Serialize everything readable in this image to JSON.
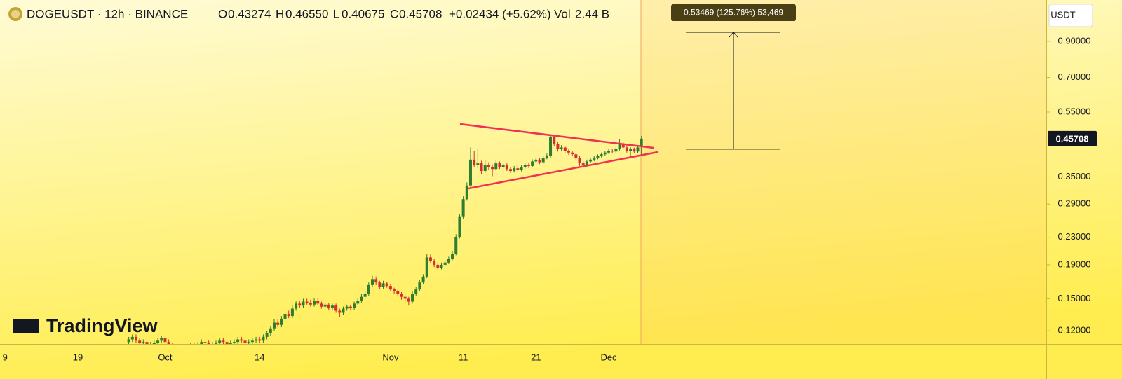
{
  "header": {
    "symbol": "DOGEUSDT · 12h · BINANCE",
    "open_label": "O",
    "open": "0.43274",
    "high_label": "H",
    "high": "0.46550",
    "low_label": "L",
    "low": "0.40675",
    "close_label": "C",
    "close": "0.45708",
    "change": "+0.02434 (+5.62%)",
    "volume_label": "Vol",
    "volume": "2.44 B",
    "currency": "USDT",
    "watermark": "TradingView"
  },
  "chart_data": {
    "type": "candlestick",
    "log_scale": true,
    "grid": false,
    "up_color": "#2e7d32",
    "down_color": "#d32f2f",
    "ylim": [
      0.11,
      1.2
    ],
    "yticks": [
      {
        "value": 0.12,
        "label": "0.12000"
      },
      {
        "value": 0.15,
        "label": "0.15000"
      },
      {
        "value": 0.19,
        "label": "0.19000"
      },
      {
        "value": 0.23,
        "label": "0.23000"
      },
      {
        "value": 0.29,
        "label": "0.29000"
      },
      {
        "value": 0.35,
        "label": "0.35000"
      },
      {
        "value": 0.55,
        "label": "0.55000"
      },
      {
        "value": 0.7,
        "label": "0.70000"
      },
      {
        "value": 0.9,
        "label": "0.90000"
      }
    ],
    "categories": [
      "9",
      null,
      null,
      null,
      null,
      null,
      null,
      null,
      null,
      null,
      null,
      null,
      null,
      null,
      null,
      null,
      null,
      null,
      null,
      null,
      "19",
      null,
      null,
      null,
      null,
      null,
      null,
      null,
      null,
      null,
      null,
      null,
      null,
      null,
      null,
      null,
      null,
      null,
      null,
      null,
      null,
      null,
      null,
      null,
      "Oct",
      null,
      null,
      null,
      null,
      null,
      null,
      null,
      null,
      null,
      null,
      null,
      null,
      null,
      null,
      null,
      null,
      null,
      null,
      null,
      null,
      null,
      null,
      null,
      null,
      null,
      "14",
      null,
      null,
      null,
      null,
      null,
      null,
      null,
      null,
      null,
      null,
      null,
      null,
      null,
      null,
      null,
      null,
      null,
      null,
      null,
      null,
      null,
      null,
      null,
      null,
      null,
      null,
      null,
      null,
      null,
      null,
      null,
      null,
      null,
      null,
      null,
      "Nov",
      null,
      null,
      null,
      null,
      null,
      null,
      null,
      null,
      null,
      null,
      null,
      null,
      null,
      null,
      null,
      null,
      null,
      null,
      null,
      "11",
      null,
      null,
      null,
      null,
      null,
      null,
      null,
      null,
      null,
      null,
      null,
      null,
      null,
      null,
      null,
      null,
      null,
      null,
      null,
      "21",
      null,
      null,
      null,
      null,
      null,
      null,
      null,
      null,
      null,
      null,
      null,
      null,
      null,
      null,
      null,
      null,
      null,
      null,
      null,
      "Dec",
      null,
      null,
      null,
      null,
      null,
      null,
      null,
      null,
      null
    ],
    "open": [
      null,
      null,
      null,
      null,
      null,
      null,
      null,
      null,
      null,
      null,
      null,
      null,
      null,
      null,
      null,
      null,
      null,
      null,
      null,
      null,
      null,
      null,
      null,
      null,
      null,
      null,
      null,
      null,
      null,
      null,
      null,
      null,
      null,
      null,
      0.111,
      0.113,
      0.115,
      0.112,
      0.11,
      0.111,
      0.108,
      0.109,
      0.11,
      0.112,
      0.114,
      0.111,
      0.108,
      0.106,
      0.107,
      0.105,
      0.104,
      0.106,
      0.108,
      0.107,
      0.109,
      0.111,
      0.11,
      0.108,
      0.109,
      0.11,
      0.112,
      0.111,
      0.109,
      0.11,
      0.111,
      0.113,
      0.112,
      0.11,
      0.111,
      0.112,
      0.113,
      0.112,
      0.115,
      0.118,
      0.122,
      0.127,
      0.125,
      0.13,
      0.135,
      0.133,
      0.14,
      0.145,
      0.143,
      0.147,
      0.146,
      0.144,
      0.148,
      0.145,
      0.142,
      0.144,
      0.141,
      0.143,
      0.138,
      0.136,
      0.14,
      0.142,
      0.141,
      0.145,
      0.148,
      0.152,
      0.155,
      0.165,
      0.172,
      0.168,
      0.163,
      0.167,
      0.164,
      0.16,
      0.158,
      0.155,
      0.152,
      0.15,
      0.147,
      0.155,
      0.16,
      0.168,
      0.175,
      0.2,
      0.195,
      0.19,
      0.186,
      0.19,
      0.193,
      0.198,
      0.205,
      0.23,
      0.265,
      0.3,
      0.33,
      0.395,
      0.38,
      0.385,
      0.365,
      0.38,
      0.375,
      0.37,
      0.385,
      0.375,
      0.38,
      0.37,
      0.365,
      0.372,
      0.368,
      0.375,
      0.38,
      0.378,
      0.39,
      0.395,
      0.388,
      0.4,
      0.405,
      0.462,
      0.44,
      0.425,
      0.43,
      0.42,
      0.415,
      0.41,
      0.4,
      0.385,
      0.38,
      0.39,
      0.395,
      0.4,
      0.405,
      0.41,
      0.415,
      0.42,
      0.418,
      0.425,
      0.44,
      0.43,
      0.42,
      0.425,
      0.418,
      0.43274
    ],
    "high": [
      null,
      null,
      null,
      null,
      null,
      null,
      null,
      null,
      null,
      null,
      null,
      null,
      null,
      null,
      null,
      null,
      null,
      null,
      null,
      null,
      null,
      null,
      null,
      null,
      null,
      null,
      null,
      null,
      null,
      null,
      null,
      null,
      null,
      null,
      0.115,
      0.117,
      0.117,
      0.114,
      0.113,
      0.113,
      0.111,
      0.112,
      0.114,
      0.116,
      0.116,
      0.113,
      0.11,
      0.109,
      0.109,
      0.107,
      0.108,
      0.11,
      0.11,
      0.111,
      0.113,
      0.113,
      0.112,
      0.111,
      0.112,
      0.114,
      0.114,
      0.113,
      0.112,
      0.113,
      0.115,
      0.115,
      0.114,
      0.113,
      0.114,
      0.115,
      0.115,
      0.117,
      0.12,
      0.124,
      0.13,
      0.13,
      0.133,
      0.138,
      0.138,
      0.143,
      0.148,
      0.148,
      0.15,
      0.15,
      0.149,
      0.151,
      0.151,
      0.147,
      0.146,
      0.146,
      0.145,
      0.145,
      0.14,
      0.142,
      0.144,
      0.144,
      0.147,
      0.151,
      0.155,
      0.158,
      0.168,
      0.176,
      0.175,
      0.17,
      0.17,
      0.169,
      0.166,
      0.162,
      0.16,
      0.157,
      0.154,
      0.152,
      0.158,
      0.163,
      0.171,
      0.178,
      0.205,
      0.204,
      0.198,
      0.193,
      0.193,
      0.196,
      0.201,
      0.209,
      0.235,
      0.27,
      0.306,
      0.337,
      0.43,
      0.42,
      0.425,
      0.392,
      0.395,
      0.388,
      0.382,
      0.392,
      0.39,
      0.387,
      0.385,
      0.376,
      0.378,
      0.377,
      0.381,
      0.386,
      0.385,
      0.396,
      0.401,
      0.4,
      0.406,
      0.412,
      0.472,
      0.47,
      0.446,
      0.437,
      0.435,
      0.426,
      0.42,
      0.414,
      0.405,
      0.39,
      0.395,
      0.4,
      0.405,
      0.41,
      0.415,
      0.42,
      0.425,
      0.426,
      0.431,
      0.455,
      0.446,
      0.436,
      0.431,
      0.43,
      0.436,
      0.4655
    ],
    "low": [
      null,
      null,
      null,
      null,
      null,
      null,
      null,
      null,
      null,
      null,
      null,
      null,
      null,
      null,
      null,
      null,
      null,
      null,
      null,
      null,
      null,
      null,
      null,
      null,
      null,
      null,
      null,
      null,
      null,
      null,
      null,
      null,
      null,
      null,
      0.109,
      0.111,
      0.11,
      0.108,
      0.108,
      0.106,
      0.106,
      0.107,
      0.108,
      0.11,
      0.109,
      0.106,
      0.104,
      0.104,
      0.103,
      0.102,
      0.102,
      0.104,
      0.105,
      0.105,
      0.107,
      0.108,
      0.106,
      0.106,
      0.107,
      0.108,
      0.109,
      0.107,
      0.107,
      0.108,
      0.109,
      0.11,
      0.108,
      0.108,
      0.109,
      0.11,
      0.11,
      0.11,
      0.113,
      0.116,
      0.12,
      0.123,
      0.123,
      0.128,
      0.131,
      0.131,
      0.138,
      0.141,
      0.141,
      0.144,
      0.142,
      0.142,
      0.143,
      0.14,
      0.14,
      0.139,
      0.139,
      0.136,
      0.132,
      0.134,
      0.138,
      0.139,
      0.139,
      0.143,
      0.146,
      0.15,
      0.153,
      0.163,
      0.165,
      0.16,
      0.161,
      0.162,
      0.158,
      0.155,
      0.152,
      0.149,
      0.146,
      0.143,
      0.145,
      0.153,
      0.158,
      0.166,
      0.173,
      0.192,
      0.187,
      0.183,
      0.184,
      0.188,
      0.191,
      0.196,
      0.203,
      0.228,
      0.262,
      0.297,
      0.327,
      0.375,
      0.372,
      0.358,
      0.36,
      0.368,
      0.352,
      0.366,
      0.37,
      0.371,
      0.365,
      0.36,
      0.361,
      0.364,
      0.364,
      0.371,
      0.373,
      0.374,
      0.386,
      0.383,
      0.384,
      0.396,
      0.4,
      0.435,
      0.418,
      0.42,
      0.414,
      0.408,
      0.404,
      0.394,
      0.378,
      0.374,
      0.376,
      0.386,
      0.391,
      0.396,
      0.401,
      0.406,
      0.411,
      0.413,
      0.414,
      0.421,
      0.425,
      0.415,
      0.4,
      0.413,
      0.414,
      0.40675
    ],
    "close": [
      null,
      null,
      null,
      null,
      null,
      null,
      null,
      null,
      null,
      null,
      null,
      null,
      null,
      null,
      null,
      null,
      null,
      null,
      null,
      null,
      null,
      null,
      null,
      null,
      null,
      null,
      null,
      null,
      null,
      null,
      null,
      null,
      null,
      null,
      0.113,
      0.115,
      0.112,
      0.11,
      0.111,
      0.108,
      0.109,
      0.11,
      0.112,
      0.114,
      0.111,
      0.108,
      0.106,
      0.107,
      0.105,
      0.104,
      0.106,
      0.108,
      0.107,
      0.109,
      0.111,
      0.11,
      0.108,
      0.109,
      0.11,
      0.112,
      0.111,
      0.109,
      0.11,
      0.111,
      0.113,
      0.112,
      0.11,
      0.111,
      0.112,
      0.113,
      0.112,
      0.115,
      0.118,
      0.122,
      0.127,
      0.125,
      0.13,
      0.135,
      0.133,
      0.14,
      0.145,
      0.143,
      0.147,
      0.146,
      0.144,
      0.148,
      0.145,
      0.142,
      0.144,
      0.141,
      0.143,
      0.138,
      0.136,
      0.14,
      0.142,
      0.141,
      0.145,
      0.148,
      0.152,
      0.155,
      0.165,
      0.172,
      0.168,
      0.163,
      0.167,
      0.164,
      0.16,
      0.158,
      0.155,
      0.152,
      0.15,
      0.147,
      0.155,
      0.16,
      0.168,
      0.175,
      0.2,
      0.195,
      0.19,
      0.186,
      0.19,
      0.193,
      0.198,
      0.205,
      0.23,
      0.265,
      0.3,
      0.33,
      0.395,
      0.38,
      0.385,
      0.365,
      0.38,
      0.375,
      0.37,
      0.385,
      0.375,
      0.38,
      0.37,
      0.365,
      0.372,
      0.368,
      0.375,
      0.38,
      0.378,
      0.39,
      0.395,
      0.388,
      0.4,
      0.405,
      0.462,
      0.44,
      0.425,
      0.43,
      0.42,
      0.415,
      0.41,
      0.4,
      0.385,
      0.38,
      0.39,
      0.395,
      0.4,
      0.405,
      0.41,
      0.415,
      0.42,
      0.418,
      0.425,
      0.44,
      0.43,
      0.42,
      0.425,
      0.418,
      0.43,
      0.45708
    ],
    "measure": {
      "from": 0.425,
      "to": 0.959,
      "label": "0.53469 (125.76%) 53,469"
    }
  }
}
